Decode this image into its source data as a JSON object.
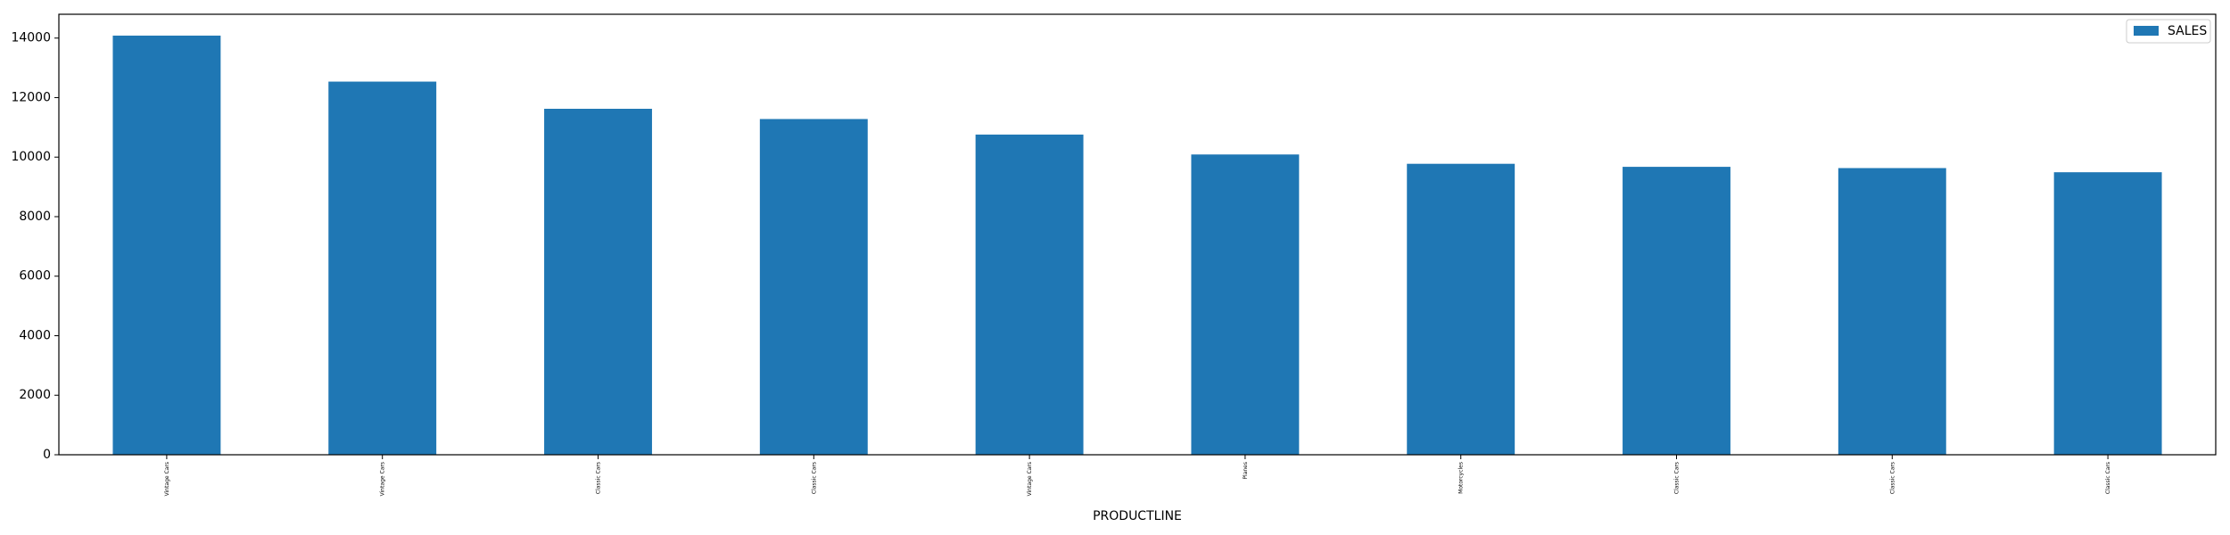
{
  "chart_data": {
    "type": "bar",
    "categories": [
      "Vintage Cars",
      "Vintage Cars",
      "Classic Cars",
      "Classic Cars",
      "Vintage Cars",
      "Planes",
      "Motorcycles",
      "Classic Cars",
      "Classic Cars",
      "Classic Cars"
    ],
    "series": [
      {
        "name": "SALES",
        "values": [
          14083,
          12537,
          11624,
          11280,
          10758,
          10089,
          9776,
          9674,
          9632,
          9492
        ]
      }
    ],
    "xlabel": "PRODUCTLINE",
    "ylabel": "",
    "ylim": [
      0,
      14800
    ],
    "yticks": [
      0,
      2000,
      4000,
      6000,
      8000,
      10000,
      12000,
      14000
    ],
    "legend_position": "top-right",
    "grid": false,
    "colors": {
      "bar": "#1f77b4",
      "axis": "#000000"
    }
  }
}
